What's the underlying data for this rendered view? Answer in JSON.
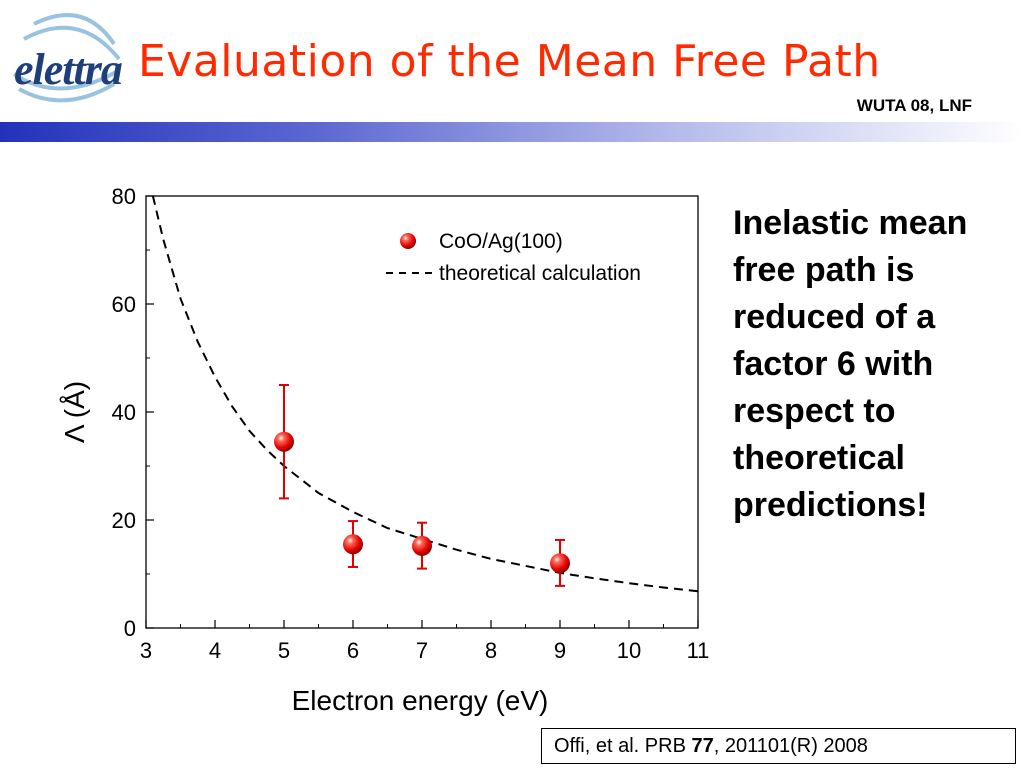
{
  "header": {
    "logo_text": "elettra",
    "title": "Evaluation of the Mean Free Path",
    "subtitle": "WUTA 08, LNF"
  },
  "side_text": "Inelastic mean free path is reduced of a factor 6 with respect to theoretical predictions!",
  "reference": {
    "authors": "Offi, et al. PRB ",
    "volume": "77",
    "rest": ", 201101(R) 2008"
  },
  "colors": {
    "title": "#ff2a00",
    "points": "#e00000",
    "band_start": "#2233bb"
  },
  "chart_data": {
    "type": "scatter",
    "xlabel": "Electron energy (eV)",
    "ylabel": "Λ (Å)",
    "xlim": [
      3,
      11
    ],
    "ylim": [
      0,
      80
    ],
    "xticks": [
      3,
      4,
      5,
      6,
      7,
      8,
      9,
      10,
      11
    ],
    "yticks": [
      0,
      20,
      40,
      60,
      80
    ],
    "grid": false,
    "legend_position": "top-right",
    "series": [
      {
        "name": "CoO/Ag(100)",
        "kind": "points_with_errorbars",
        "color": "#e00000",
        "x": [
          5,
          6,
          7,
          9
        ],
        "y": [
          34.5,
          15.5,
          15.2,
          12.0
        ],
        "err_low": [
          24.0,
          11.3,
          11.0,
          7.8
        ],
        "err_high": [
          45.0,
          19.8,
          19.5,
          16.3
        ]
      },
      {
        "name": "theoretical calculation",
        "kind": "dashed_line",
        "color": "#000000",
        "x": [
          3.1,
          3.25,
          3.5,
          3.75,
          4,
          4.25,
          4.5,
          4.75,
          5,
          5.5,
          6,
          6.5,
          7,
          7.5,
          8,
          8.5,
          9,
          9.5,
          10,
          10.5,
          11
        ],
        "y": [
          80,
          72,
          61,
          53,
          46.5,
          41,
          36.5,
          33,
          30,
          25,
          21.5,
          18.5,
          16.5,
          14.5,
          12.8,
          11.5,
          10.2,
          9.2,
          8.3,
          7.5,
          6.8
        ]
      }
    ]
  }
}
